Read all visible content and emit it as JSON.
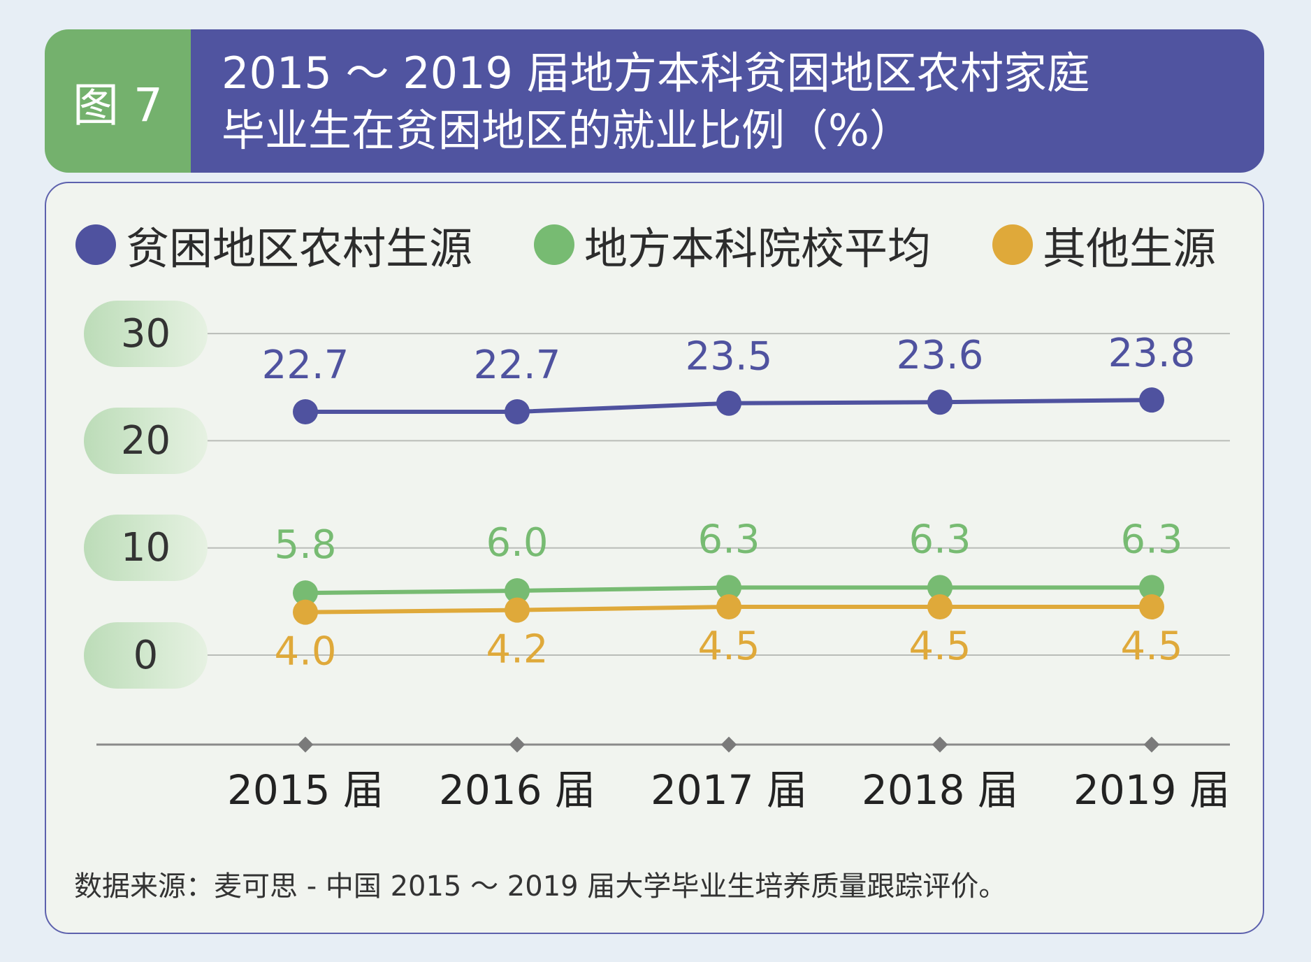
{
  "header": {
    "tag": "图 7",
    "title": "2015 ～ 2019 届地方本科贫困地区农村家庭\n毕业生在贫困地区的就业比例（%）"
  },
  "chart_data": {
    "type": "line",
    "categories": [
      "2015 届",
      "2016 届",
      "2017 届",
      "2018 届",
      "2019 届"
    ],
    "ylim": [
      0,
      30
    ],
    "yticks": [
      "30",
      "20",
      "10",
      "0"
    ],
    "grid": true,
    "legend_position": "top",
    "series": [
      {
        "name": "贫困地区农村生源",
        "color": "#4f529f",
        "values": [
          22.7,
          22.7,
          23.5,
          23.6,
          23.8
        ],
        "labels": [
          "22.7",
          "22.7",
          "23.5",
          "23.6",
          "23.8"
        ]
      },
      {
        "name": "地方本科院校平均",
        "color": "#77bb72",
        "values": [
          5.8,
          6.0,
          6.3,
          6.3,
          6.3
        ],
        "labels": [
          "5.8",
          "6.0",
          "6.3",
          "6.3",
          "6.3"
        ]
      },
      {
        "name": "其他生源",
        "color": "#dfa93a",
        "values": [
          4.0,
          4.2,
          4.5,
          4.5,
          4.5
        ],
        "labels": [
          "4.0",
          "4.2",
          "4.5",
          "4.5",
          "4.5"
        ]
      }
    ]
  },
  "source": "数据来源：麦可思 - 中国 2015 ～ 2019 届大学毕业生培养质量跟踪评价。"
}
